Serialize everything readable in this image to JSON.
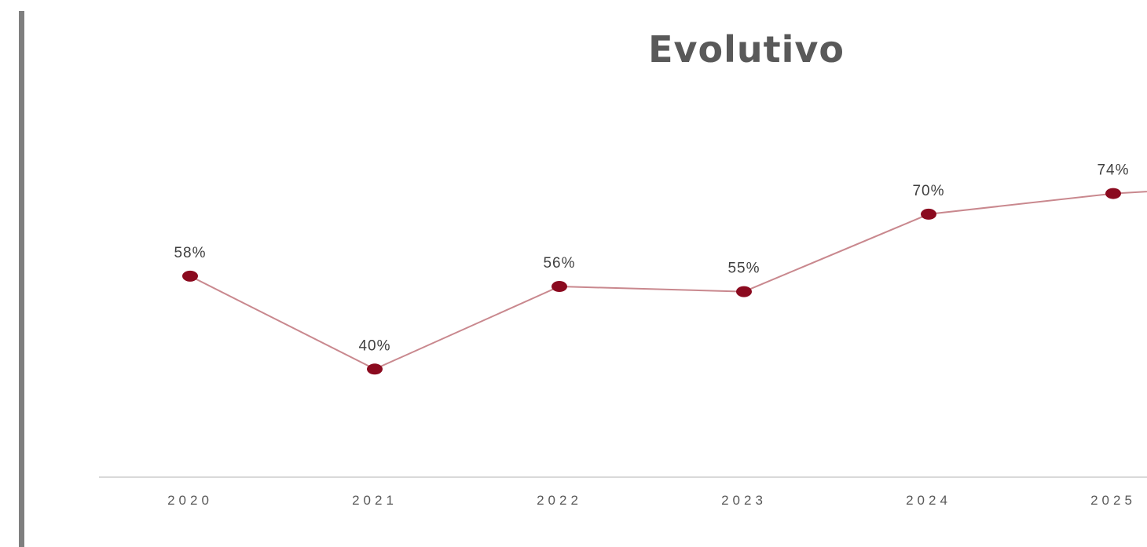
{
  "chart_data": {
    "type": "line",
    "title": "Evolutivo",
    "xlabel": "",
    "ylabel": "",
    "categories": [
      "2020",
      "2021",
      "2022",
      "2023",
      "2024",
      "2025"
    ],
    "series": [
      {
        "values": [
          58,
          40,
          56,
          55,
          70,
          74
        ],
        "labels": [
          "58%",
          "40%",
          "56%",
          "55%",
          "70%",
          "74%"
        ],
        "line_color": "#c9888e",
        "marker_color": "#8b0a1f",
        "next_value_offscreen": 76
      }
    ],
    "ylim": [
      0,
      100
    ],
    "grid": false,
    "legend": "none",
    "axis_color": "#d9d9d9",
    "frame_bar_color": "#7f7f7f"
  }
}
